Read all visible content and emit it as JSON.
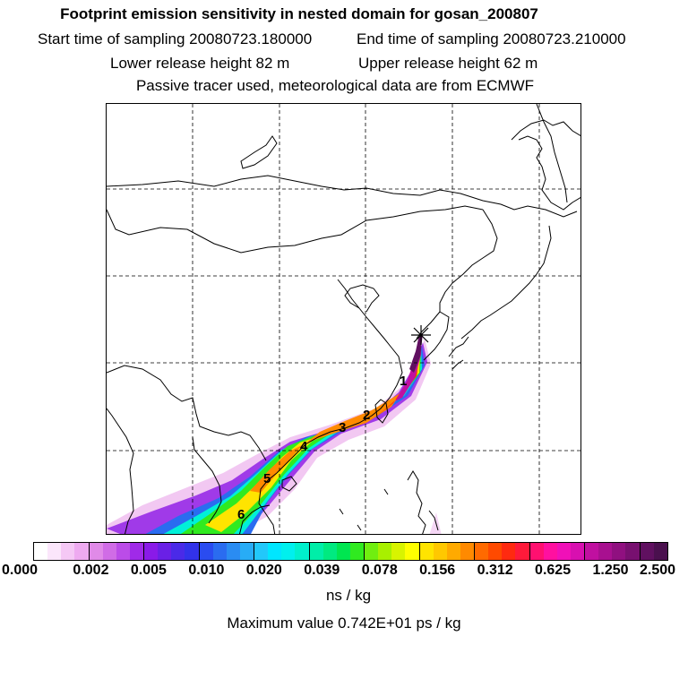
{
  "header": {
    "title": "Footprint emission sensitivity in nested domain for gosan_200807",
    "start_label": "Start time of sampling 20080723.180000",
    "end_label": "End time of sampling 20080723.210000",
    "lower_label": "Lower release height   82 m",
    "upper_label": "Upper release height   62 m",
    "note": "Passive tracer used, meteorological data are from ECMWF"
  },
  "map": {
    "release_site": "gosan",
    "markers": [
      "1",
      "2",
      "3",
      "4",
      "5",
      "6"
    ]
  },
  "legend": {
    "tick_labels": [
      "0.000",
      "0.002",
      "0.005",
      "0.010",
      "0.020",
      "0.039",
      "0.078",
      "0.156",
      "0.312",
      "0.625",
      "1.250",
      "2.500"
    ],
    "colors": [
      "#ffffff",
      "#fbe6fb",
      "#f5c8f5",
      "#eeaaf0",
      "#e08ae8",
      "#d06ce6",
      "#bb4ce8",
      "#a02ae8",
      "#8a1ae8",
      "#6a20e6",
      "#4a2ae8",
      "#3232ea",
      "#2a4cf0",
      "#2a6cf0",
      "#2a8cf2",
      "#28acf6",
      "#22c8fa",
      "#00e6ff",
      "#00f0ee",
      "#00f0cc",
      "#00eea8",
      "#00ea80",
      "#00e650",
      "#30ea20",
      "#70ee10",
      "#a8f000",
      "#d8f400",
      "#ffff00",
      "#ffe400",
      "#ffc800",
      "#ffaa00",
      "#ff8a00",
      "#ff6a00",
      "#ff4a00",
      "#ff2a10",
      "#ff1a3a",
      "#ff1070",
      "#ff10a0",
      "#f010b8",
      "#d810b0",
      "#c010a0",
      "#a81090",
      "#901080",
      "#781070",
      "#601060",
      "#4a104e"
    ],
    "units": "ns / kg",
    "max_value": "Maximum value  0.742E+01 ps / kg"
  }
}
